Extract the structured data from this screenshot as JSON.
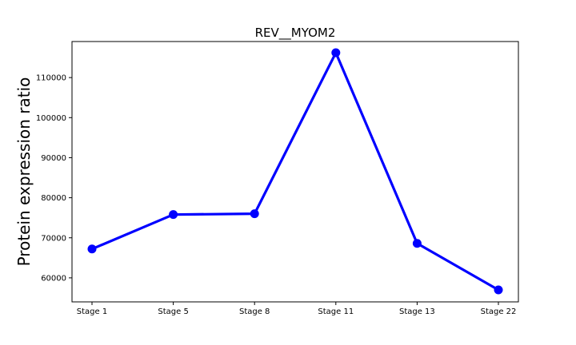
{
  "chart_data": {
    "type": "line",
    "title": "REV__MYOM2",
    "xlabel": "",
    "ylabel": "Protein expression ratio",
    "categories": [
      "Stage 1",
      "Stage 5",
      "Stage 8",
      "Stage 11",
      "Stage 13",
      "Stage 22"
    ],
    "series": [
      {
        "values": [
          67200,
          75800,
          76000,
          116200,
          68600,
          57000
        ]
      }
    ],
    "ylim": [
      54000,
      119000
    ],
    "yticks": [
      60000,
      70000,
      80000,
      90000,
      100000,
      110000
    ],
    "ytick_labels": [
      "60000",
      "70000",
      "80000",
      "90000",
      "100000",
      "110000"
    ],
    "grid": false,
    "line_color": "#0000ff"
  }
}
